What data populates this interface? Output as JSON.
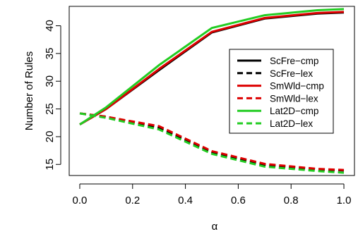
{
  "chart_data": {
    "type": "line",
    "xlabel": "α",
    "ylabel": "Number of Rules",
    "xlim": [
      -0.04,
      1.04
    ],
    "ylim": [
      13,
      43.5
    ],
    "xticks": [
      0.0,
      0.2,
      0.4,
      0.6,
      0.8,
      1.0
    ],
    "xtick_labels": [
      "0.0",
      "0.2",
      "0.4",
      "0.6",
      "0.8",
      "1.0"
    ],
    "yticks": [
      15,
      20,
      25,
      30,
      35,
      40
    ],
    "ytick_labels": [
      "15",
      "20",
      "25",
      "30",
      "35",
      "40"
    ],
    "grid": false,
    "legend_position": "right",
    "x": [
      0.0,
      0.1,
      0.3,
      0.5,
      0.7,
      0.9,
      1.0
    ],
    "series": [
      {
        "name": "ScFre−cmp",
        "color": "#000000",
        "dash": "solid",
        "values": [
          22.2,
          25.0,
          32.0,
          38.8,
          41.3,
          42.2,
          42.4
        ]
      },
      {
        "name": "ScFre−lex",
        "color": "#000000",
        "dash": "dashed",
        "values": [
          24.2,
          23.6,
          21.6,
          17.2,
          14.9,
          14.1,
          13.9
        ]
      },
      {
        "name": "SmWld−cmp",
        "color": "#dd0000",
        "dash": "solid",
        "values": [
          22.2,
          25.0,
          32.2,
          38.9,
          41.4,
          42.3,
          42.5
        ]
      },
      {
        "name": "SmWld−lex",
        "color": "#dd0000",
        "dash": "dashed",
        "values": [
          24.2,
          23.6,
          21.9,
          17.4,
          15.1,
          14.2,
          14.0
        ]
      },
      {
        "name": "Lat2D−cmp",
        "color": "#22cc22",
        "dash": "solid",
        "values": [
          22.2,
          25.3,
          32.9,
          39.6,
          41.9,
          42.8,
          43.0
        ]
      },
      {
        "name": "Lat2D−lex",
        "color": "#22cc22",
        "dash": "dashed",
        "values": [
          24.2,
          23.4,
          21.3,
          16.9,
          14.6,
          13.8,
          13.5
        ]
      }
    ]
  }
}
